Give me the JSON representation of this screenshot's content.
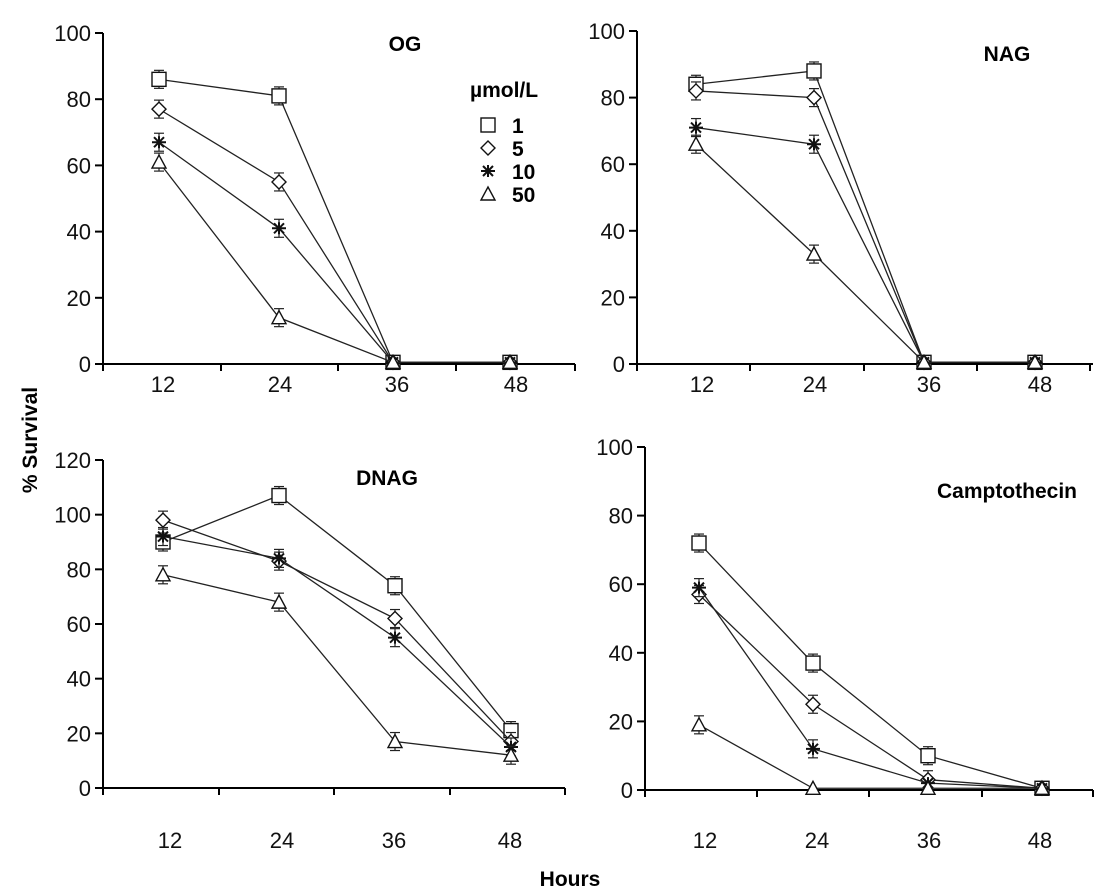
{
  "figure": {
    "ylabel": "% Survival",
    "xlabel": "Hours"
  },
  "legend": {
    "title": "µmol/L",
    "entries": [
      {
        "label": "1",
        "marker": "square"
      },
      {
        "label": "5",
        "marker": "diamond"
      },
      {
        "label": "10",
        "marker": "star"
      },
      {
        "label": "50",
        "marker": "triangle"
      }
    ]
  },
  "chart_data": [
    {
      "type": "line",
      "title": "OG",
      "x": [
        12,
        24,
        36,
        48
      ],
      "ylim": [
        0,
        100
      ],
      "yticks": [
        0,
        20,
        40,
        60,
        80,
        100
      ],
      "series": [
        {
          "name": "1",
          "marker": "square",
          "values": [
            86,
            81,
            0.5,
            0.5
          ]
        },
        {
          "name": "5",
          "marker": "diamond",
          "values": [
            77,
            55,
            0.5,
            0.5
          ]
        },
        {
          "name": "10",
          "marker": "star",
          "values": [
            67,
            41,
            0.5,
            0.5
          ]
        },
        {
          "name": "50",
          "marker": "triangle",
          "values": [
            61,
            14,
            0.5,
            0.5
          ]
        }
      ]
    },
    {
      "type": "line",
      "title": "NAG",
      "x": [
        12,
        24,
        36,
        48
      ],
      "ylim": [
        0,
        100
      ],
      "yticks": [
        0,
        20,
        40,
        60,
        80,
        100
      ],
      "series": [
        {
          "name": "1",
          "marker": "square",
          "values": [
            84,
            88,
            0.5,
            0.5
          ]
        },
        {
          "name": "5",
          "marker": "diamond",
          "values": [
            82,
            80,
            0.5,
            0.5
          ]
        },
        {
          "name": "10",
          "marker": "star",
          "values": [
            71,
            66,
            0.5,
            0.5
          ]
        },
        {
          "name": "50",
          "marker": "triangle",
          "values": [
            66,
            33,
            0.5,
            0.5
          ]
        }
      ]
    },
    {
      "type": "line",
      "title": "DNAG",
      "x": [
        12,
        24,
        36,
        48
      ],
      "ylim": [
        0,
        120
      ],
      "yticks": [
        0,
        20,
        40,
        60,
        80,
        100,
        120
      ],
      "series": [
        {
          "name": "1",
          "marker": "square",
          "values": [
            90,
            107,
            74,
            21
          ]
        },
        {
          "name": "5",
          "marker": "diamond",
          "values": [
            98,
            83,
            62,
            17
          ]
        },
        {
          "name": "10",
          "marker": "star",
          "values": [
            92,
            84,
            55,
            15
          ]
        },
        {
          "name": "50",
          "marker": "triangle",
          "values": [
            78,
            68,
            17,
            12
          ]
        }
      ]
    },
    {
      "type": "line",
      "title": "Camptothecin",
      "x": [
        12,
        24,
        36,
        48
      ],
      "ylim": [
        0,
        100
      ],
      "yticks": [
        0,
        20,
        40,
        60,
        80,
        100
      ],
      "series": [
        {
          "name": "1",
          "marker": "square",
          "values": [
            72,
            37,
            10,
            0.5
          ]
        },
        {
          "name": "5",
          "marker": "diamond",
          "values": [
            57,
            25,
            3,
            0.5
          ]
        },
        {
          "name": "10",
          "marker": "star",
          "values": [
            59,
            12,
            2,
            0.5
          ]
        },
        {
          "name": "50",
          "marker": "triangle",
          "values": [
            19,
            0.5,
            0.5,
            0.5
          ]
        }
      ]
    }
  ]
}
